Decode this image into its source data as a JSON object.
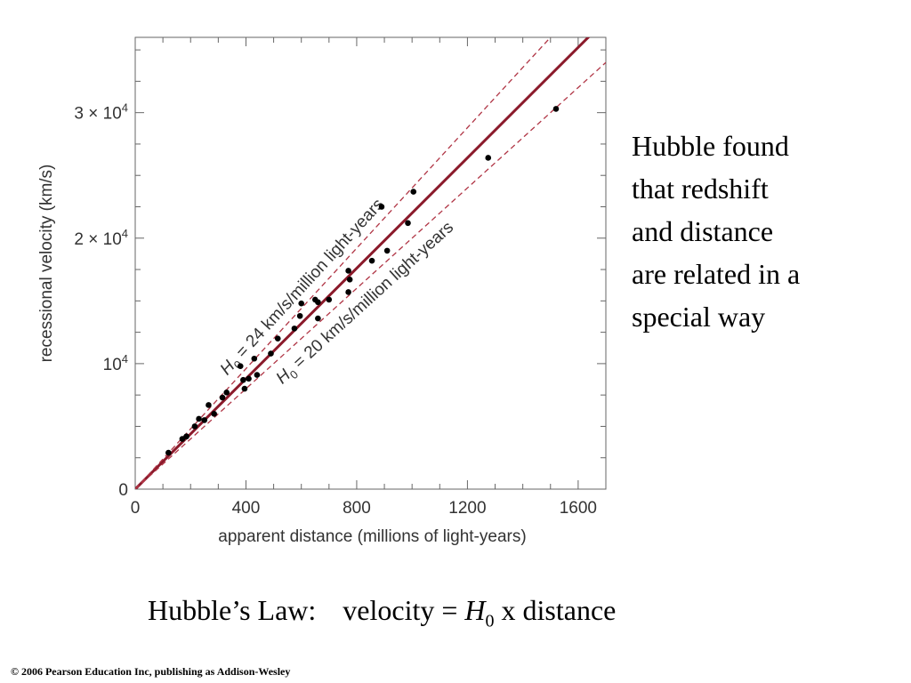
{
  "chart_data": {
    "type": "scatter",
    "xlabel": "apparent distance (millions of light-years)",
    "ylabel": "recessional velocity (km/s)",
    "xlim": [
      0,
      1700
    ],
    "ylim": [
      0,
      36000
    ],
    "x_ticks": [
      0,
      400,
      800,
      1200,
      1600
    ],
    "x_tick_labels": [
      "0",
      "400",
      "800",
      "1200",
      "1600"
    ],
    "y_ticks": [
      0,
      10000,
      20000,
      30000
    ],
    "y_tick_labels": [
      {
        "value": 0,
        "mant": "0",
        "exp": ""
      },
      {
        "value": 10000,
        "mant": "10",
        "exp": "4"
      },
      {
        "value": 20000,
        "mant": "2 × 10",
        "exp": "4"
      },
      {
        "value": 30000,
        "mant": "3 × 10",
        "exp": "4"
      }
    ],
    "grid": false,
    "points": [
      [
        120,
        2900
      ],
      [
        170,
        4000
      ],
      [
        185,
        4200
      ],
      [
        215,
        5000
      ],
      [
        230,
        5600
      ],
      [
        250,
        5500
      ],
      [
        265,
        6700
      ],
      [
        285,
        6000
      ],
      [
        315,
        7300
      ],
      [
        330,
        7700
      ],
      [
        380,
        9800
      ],
      [
        390,
        8700
      ],
      [
        395,
        8000
      ],
      [
        410,
        8800
      ],
      [
        430,
        10400
      ],
      [
        440,
        9100
      ],
      [
        490,
        10800
      ],
      [
        515,
        12000
      ],
      [
        575,
        12800
      ],
      [
        595,
        13800
      ],
      [
        600,
        14800
      ],
      [
        650,
        15100
      ],
      [
        660,
        13600
      ],
      [
        660,
        14900
      ],
      [
        700,
        15100
      ],
      [
        770,
        17400
      ],
      [
        770,
        15700
      ],
      [
        775,
        16700
      ],
      [
        855,
        18200
      ],
      [
        890,
        22500
      ],
      [
        910,
        19000
      ],
      [
        985,
        21200
      ],
      [
        1005,
        23700
      ],
      [
        1275,
        26400
      ],
      [
        1520,
        30300
      ]
    ],
    "lines": [
      {
        "slope": 22,
        "style": "solid",
        "color": "#8b1a2b"
      },
      {
        "slope": 24,
        "style": "dashed",
        "color": "#b03545",
        "label_text": "= 24 km/s/million light-years"
      },
      {
        "slope": 20,
        "style": "dashed",
        "color": "#b03545",
        "label_text": "= 20 km/s/million light-years"
      }
    ],
    "h0_symbol": "H",
    "h0_sub": "0"
  },
  "slide": {
    "side_text": [
      "Hubble found",
      "that redshift",
      "and distance",
      "are related in a",
      "special way"
    ],
    "law_label": "Hubble’s Law:",
    "law_eq_lhs": "velocity =",
    "law_h": "H",
    "law_sub": "0",
    "law_rhs": "x distance",
    "copyright": "© 2006 Pearson Education Inc, publishing as Addison-Wesley"
  }
}
